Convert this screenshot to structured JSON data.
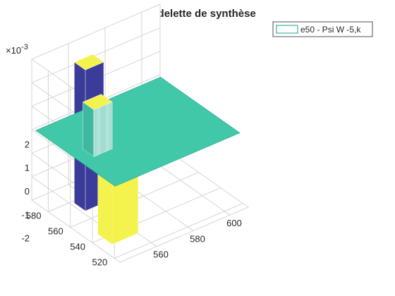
{
  "chart_data": {
    "type": "surface-3d",
    "title": "ondelette de synthèse",
    "legend": {
      "entries": [
        "e50 - Psi W -5,k"
      ],
      "placement": "top-right",
      "swatch_color": "#35b6a0"
    },
    "z_exponent_label": "×10",
    "z_exponent_power": "-3",
    "z_tick_labels": [
      "2",
      "1",
      "0",
      "-1",
      "-2"
    ],
    "z_ticks": [
      2,
      1,
      0,
      -1,
      -2
    ],
    "x_tick_labels": [
      "560",
      "580",
      "600"
    ],
    "x_ticks": [
      560,
      580,
      600
    ],
    "y_tick_labels": [
      "520",
      "540",
      "560",
      "580"
    ],
    "y_ticks": [
      520,
      540,
      560,
      580
    ],
    "x_range": [
      540,
      610
    ],
    "y_range": [
      515,
      595
    ],
    "z_range": [
      -3,
      3
    ],
    "surface": {
      "base_level": 0,
      "high_plateau_level": 3,
      "mid_plateau_level": 2,
      "negative_well_level": -3,
      "colors": {
        "base": "#40c8a8",
        "low": "#3b3b9a",
        "mid": "#3fb8a0",
        "high": "#f4f24c"
      }
    },
    "grid": true
  }
}
